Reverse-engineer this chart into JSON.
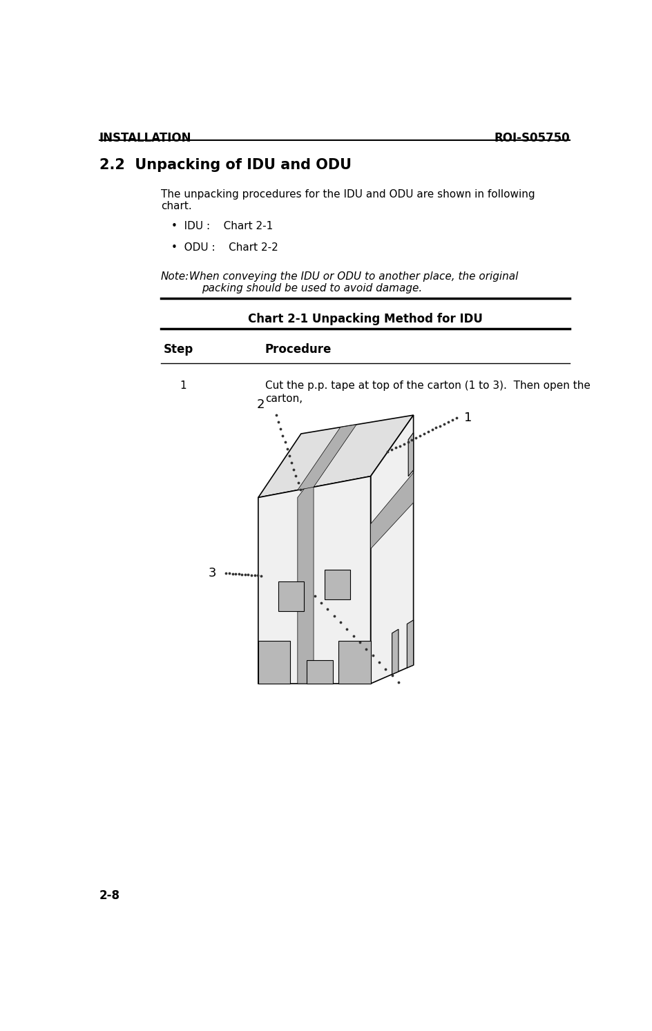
{
  "header_left": "INSTALLATION",
  "header_right": "ROI-S05750",
  "footer_left": "2-8",
  "section_title": "2.2  Unpacking of IDU and ODU",
  "body_text1": "The unpacking procedures for the IDU and ODU are shown in following\nchart.",
  "bullet1": "•  IDU :    Chart 2-1",
  "bullet2": "•  ODU :    Chart 2-2",
  "note_label": "Note:",
  "note_body": " When conveying the IDU or ODU to another place, the original\n         packing should be used to avoid damage.",
  "chart_title": "Chart 2-1 Unpacking Method for IDU",
  "col_step": "Step",
  "col_procedure": "Procedure",
  "step_num": "1",
  "step_text": "Cut the p.p. tape at top of the carton (1 to 3).  Then open the\ncarton,",
  "bg_color": "#ffffff",
  "text_color": "#000000",
  "line_color": "#000000",
  "tape_color": "#b0b0b0",
  "face_light": "#f0f0f0",
  "face_mid": "#e0e0e0",
  "face_dark": "#c8c8c8",
  "tab_color": "#b8b8b8"
}
